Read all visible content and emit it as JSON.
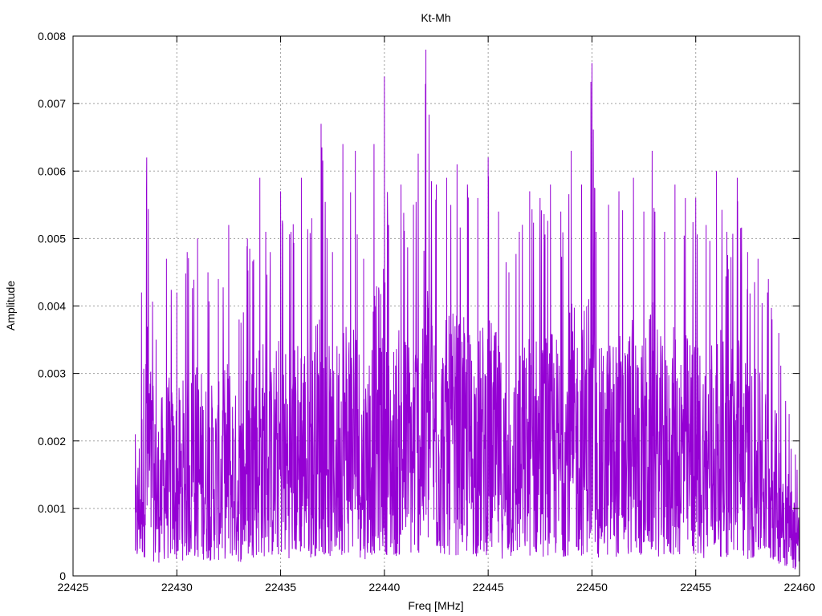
{
  "chart_data": {
    "type": "line",
    "title": "Kt-Mh",
    "xlabel": "Freq [MHz]",
    "ylabel": "Amplitude",
    "xlim": [
      22425,
      22460
    ],
    "ylim": [
      0,
      0.008
    ],
    "grid": true,
    "x_ticks": [
      "22425",
      "22430",
      "22435",
      "22440",
      "22445",
      "22450",
      "22455",
      "22460"
    ],
    "y_ticks": [
      "0",
      "0.001",
      "0.002",
      "0.003",
      "0.004",
      "0.005",
      "0.006",
      "0.007",
      "0.008"
    ],
    "series": [
      {
        "color": "#9400d3",
        "x": [
          22428.0,
          22428.3,
          22428.55,
          22429.0,
          22429.5,
          22430.0,
          22430.5,
          22431.0,
          22431.5,
          22432.0,
          22432.5,
          22433.0,
          22433.4,
          22434.0,
          22434.5,
          22435.0,
          22435.5,
          22436.0,
          22436.5,
          22436.95,
          22437.5,
          22438.0,
          22438.6,
          22439.0,
          22439.5,
          22440.0,
          22440.2,
          22440.8,
          22441.4,
          22442.0,
          22442.5,
          22443.0,
          22443.5,
          22444.0,
          22444.5,
          22445.0,
          22445.5,
          22446.0,
          22446.5,
          22447.0,
          22447.5,
          22448.0,
          22448.5,
          22449.0,
          22449.5,
          22450.0,
          22450.2,
          22450.8,
          22451.3,
          22452.0,
          22452.5,
          22452.9,
          22453.5,
          22454.0,
          22454.5,
          22455.0,
          22455.5,
          22456.0,
          22456.5,
          22457.0,
          22457.5,
          22458.0,
          22458.5,
          22459.0,
          22459.5,
          22459.8,
          22460.0
        ],
        "y": [
          0.0021,
          0.0042,
          0.0062,
          0.0035,
          0.0047,
          0.0042,
          0.0048,
          0.005,
          0.0045,
          0.0044,
          0.0052,
          0.0038,
          0.005,
          0.0059,
          0.0048,
          0.0057,
          0.0051,
          0.0059,
          0.0053,
          0.0067,
          0.0048,
          0.0064,
          0.0063,
          0.0047,
          0.0064,
          0.0074,
          0.0052,
          0.0058,
          0.0055,
          0.0078,
          0.0058,
          0.0059,
          0.0061,
          0.0058,
          0.0056,
          0.0062,
          0.0054,
          0.0045,
          0.0051,
          0.0057,
          0.0056,
          0.0058,
          0.0054,
          0.0063,
          0.0058,
          0.0076,
          0.0051,
          0.0055,
          0.0057,
          0.0059,
          0.0054,
          0.0063,
          0.0051,
          0.0058,
          0.0056,
          0.0056,
          0.0052,
          0.006,
          0.0051,
          0.0059,
          0.0048,
          0.0047,
          0.0044,
          0.0036,
          0.0024,
          0.0018,
          0.0015
        ]
      }
    ]
  }
}
